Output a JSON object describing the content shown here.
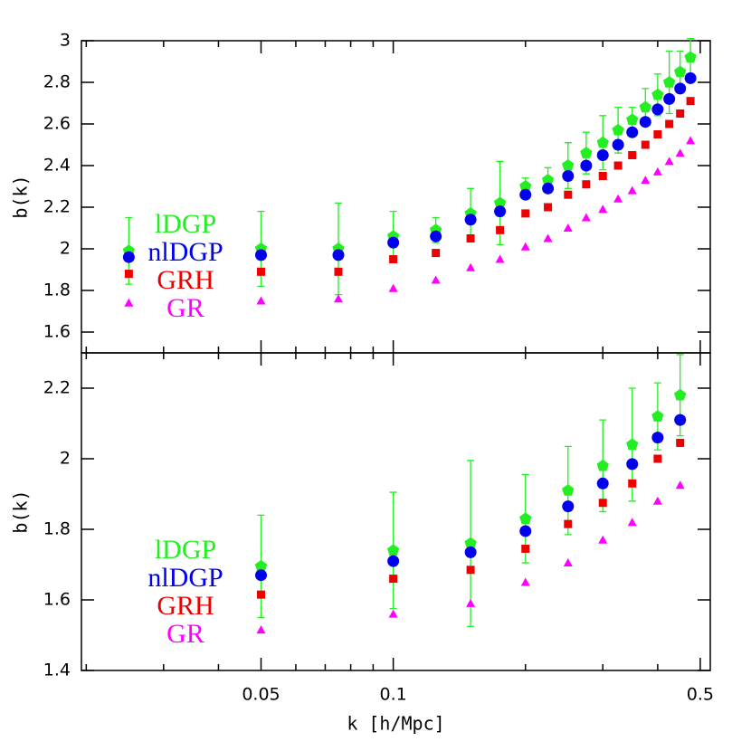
{
  "chart_data": [
    {
      "type": "scatter",
      "y_label": "b(k)",
      "xscale": "log",
      "xlim": [
        0.0195,
        0.527
      ],
      "ylim": [
        1.5,
        3
      ],
      "yticks": [
        1.6,
        1.8,
        2,
        2.2,
        2.4,
        2.6,
        2.8,
        3
      ],
      "legend": "center left",
      "x": [
        0.025,
        0.05,
        0.075,
        0.1,
        0.125,
        0.15,
        0.175,
        0.2,
        0.225,
        0.25,
        0.275,
        0.3,
        0.325,
        0.35,
        0.375,
        0.4,
        0.425,
        0.45,
        0.475
      ],
      "series": [
        {
          "name": "lDGP",
          "color": "#22ee22",
          "marker": "pentagon",
          "values": [
            1.99,
            2.0,
            2.0,
            2.06,
            2.09,
            2.17,
            2.22,
            2.3,
            2.33,
            2.4,
            2.46,
            2.51,
            2.57,
            2.62,
            2.68,
            2.74,
            2.8,
            2.85,
            2.92
          ],
          "errors": [
            0.16,
            0.18,
            0.22,
            0.12,
            0.06,
            0.12,
            0.2,
            0.04,
            0.06,
            0.11,
            0.1,
            0.13,
            0.11,
            0.06,
            0.09,
            0.1,
            0.15,
            0.1,
            0.09
          ]
        },
        {
          "name": "nlDGP",
          "color": "#0000ee",
          "marker": "circle",
          "values": [
            1.96,
            1.97,
            1.97,
            2.03,
            2.06,
            2.14,
            2.18,
            2.26,
            2.29,
            2.35,
            2.4,
            2.45,
            2.5,
            2.56,
            2.61,
            2.67,
            2.72,
            2.77,
            2.82
          ]
        },
        {
          "name": "GRH",
          "color": "#ee0000",
          "marker": "square",
          "values": [
            1.88,
            1.89,
            1.89,
            1.95,
            1.98,
            2.05,
            2.09,
            2.17,
            2.2,
            2.26,
            2.31,
            2.35,
            2.4,
            2.45,
            2.5,
            2.55,
            2.6,
            2.65,
            2.71
          ]
        },
        {
          "name": "GR",
          "color": "#ff00ff",
          "marker": "triangle",
          "values": [
            1.74,
            1.75,
            1.76,
            1.81,
            1.85,
            1.91,
            1.95,
            2.01,
            2.05,
            2.1,
            2.15,
            2.19,
            2.24,
            2.28,
            2.33,
            2.37,
            2.42,
            2.46,
            2.52
          ]
        }
      ]
    },
    {
      "type": "scatter",
      "y_label": "b(k)",
      "x_label": "k [h/Mpc]",
      "xscale": "log",
      "xlim": [
        0.0195,
        0.527
      ],
      "ylim": [
        1.4,
        2.3
      ],
      "xticks": [
        0.05,
        0.1,
        0.5
      ],
      "xminorticks": [
        0.02,
        0.03,
        0.04,
        0.06,
        0.07,
        0.08,
        0.09,
        0.2,
        0.3,
        0.4
      ],
      "yticks": [
        1.4,
        1.6,
        1.8,
        2,
        2.2
      ],
      "legend": "center left",
      "x": [
        0.05,
        0.1,
        0.15,
        0.2,
        0.25,
        0.3,
        0.35,
        0.4,
        0.45
      ],
      "series": [
        {
          "name": "lDGP",
          "color": "#22ee22",
          "marker": "pentagon",
          "values": [
            1.695,
            1.74,
            1.76,
            1.83,
            1.91,
            1.98,
            2.04,
            2.12,
            2.18
          ],
          "errors": [
            0.145,
            0.165,
            0.235,
            0.125,
            0.125,
            0.13,
            0.16,
            0.095,
            0.115
          ]
        },
        {
          "name": "nlDGP",
          "color": "#0000ee",
          "marker": "circle",
          "values": [
            1.67,
            1.71,
            1.735,
            1.795,
            1.865,
            1.93,
            1.985,
            2.06,
            2.11
          ]
        },
        {
          "name": "GRH",
          "color": "#ee0000",
          "marker": "square",
          "values": [
            1.615,
            1.66,
            1.685,
            1.745,
            1.815,
            1.875,
            1.93,
            2.0,
            2.045
          ]
        },
        {
          "name": "GR",
          "color": "#ff00ff",
          "marker": "triangle",
          "values": [
            1.515,
            1.56,
            1.59,
            1.65,
            1.705,
            1.77,
            1.82,
            1.88,
            1.925
          ]
        }
      ]
    }
  ]
}
